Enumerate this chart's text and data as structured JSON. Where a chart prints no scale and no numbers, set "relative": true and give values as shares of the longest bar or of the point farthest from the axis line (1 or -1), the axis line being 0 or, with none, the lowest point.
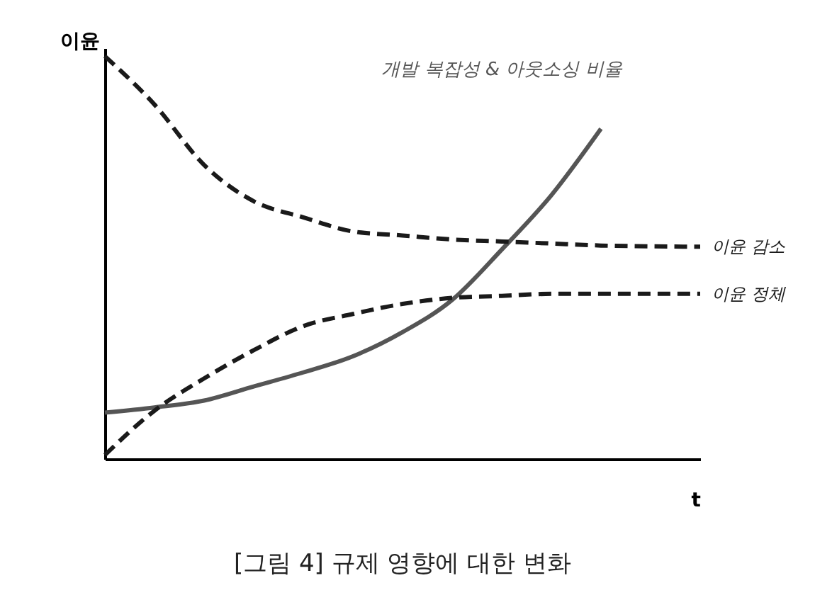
{
  "chart_data": {
    "type": "line",
    "relative": true,
    "ylabel": "이윤",
    "xlabel": "t",
    "grid": false,
    "categories": [
      null,
      null,
      null,
      null,
      null,
      null,
      null,
      null,
      null,
      null,
      null,
      null,
      null
    ],
    "series": [
      {
        "name": "개발 복잡성 & 아웃소싱 비율",
        "color": "#555555",
        "line_style": "solid",
        "values": [
          0.115,
          0.128,
          0.145,
          0.18,
          0.215,
          0.255,
          0.315,
          0.395,
          0.52,
          0.655,
          0.82,
          null,
          null
        ]
      },
      {
        "name": "이윤 감소",
        "color": "#1a1a1a",
        "line_style": "dashed",
        "values": [
          1,
          0.88,
          0.73,
          0.64,
          0.6,
          0.565,
          0.555,
          0.545,
          0.54,
          0.535,
          0.53,
          0.528,
          0.527
        ]
      },
      {
        "name": "이윤 정체",
        "color": "#1a1a1a",
        "line_style": "dashed",
        "values": [
          0.01,
          0.12,
          0.2,
          0.27,
          0.33,
          0.36,
          0.385,
          0.4,
          0.405,
          0.41,
          0.41,
          0.41,
          0.41
        ]
      }
    ],
    "annotations": [
      "[그림 4] 규제 영향에 대한 변화"
    ]
  }
}
